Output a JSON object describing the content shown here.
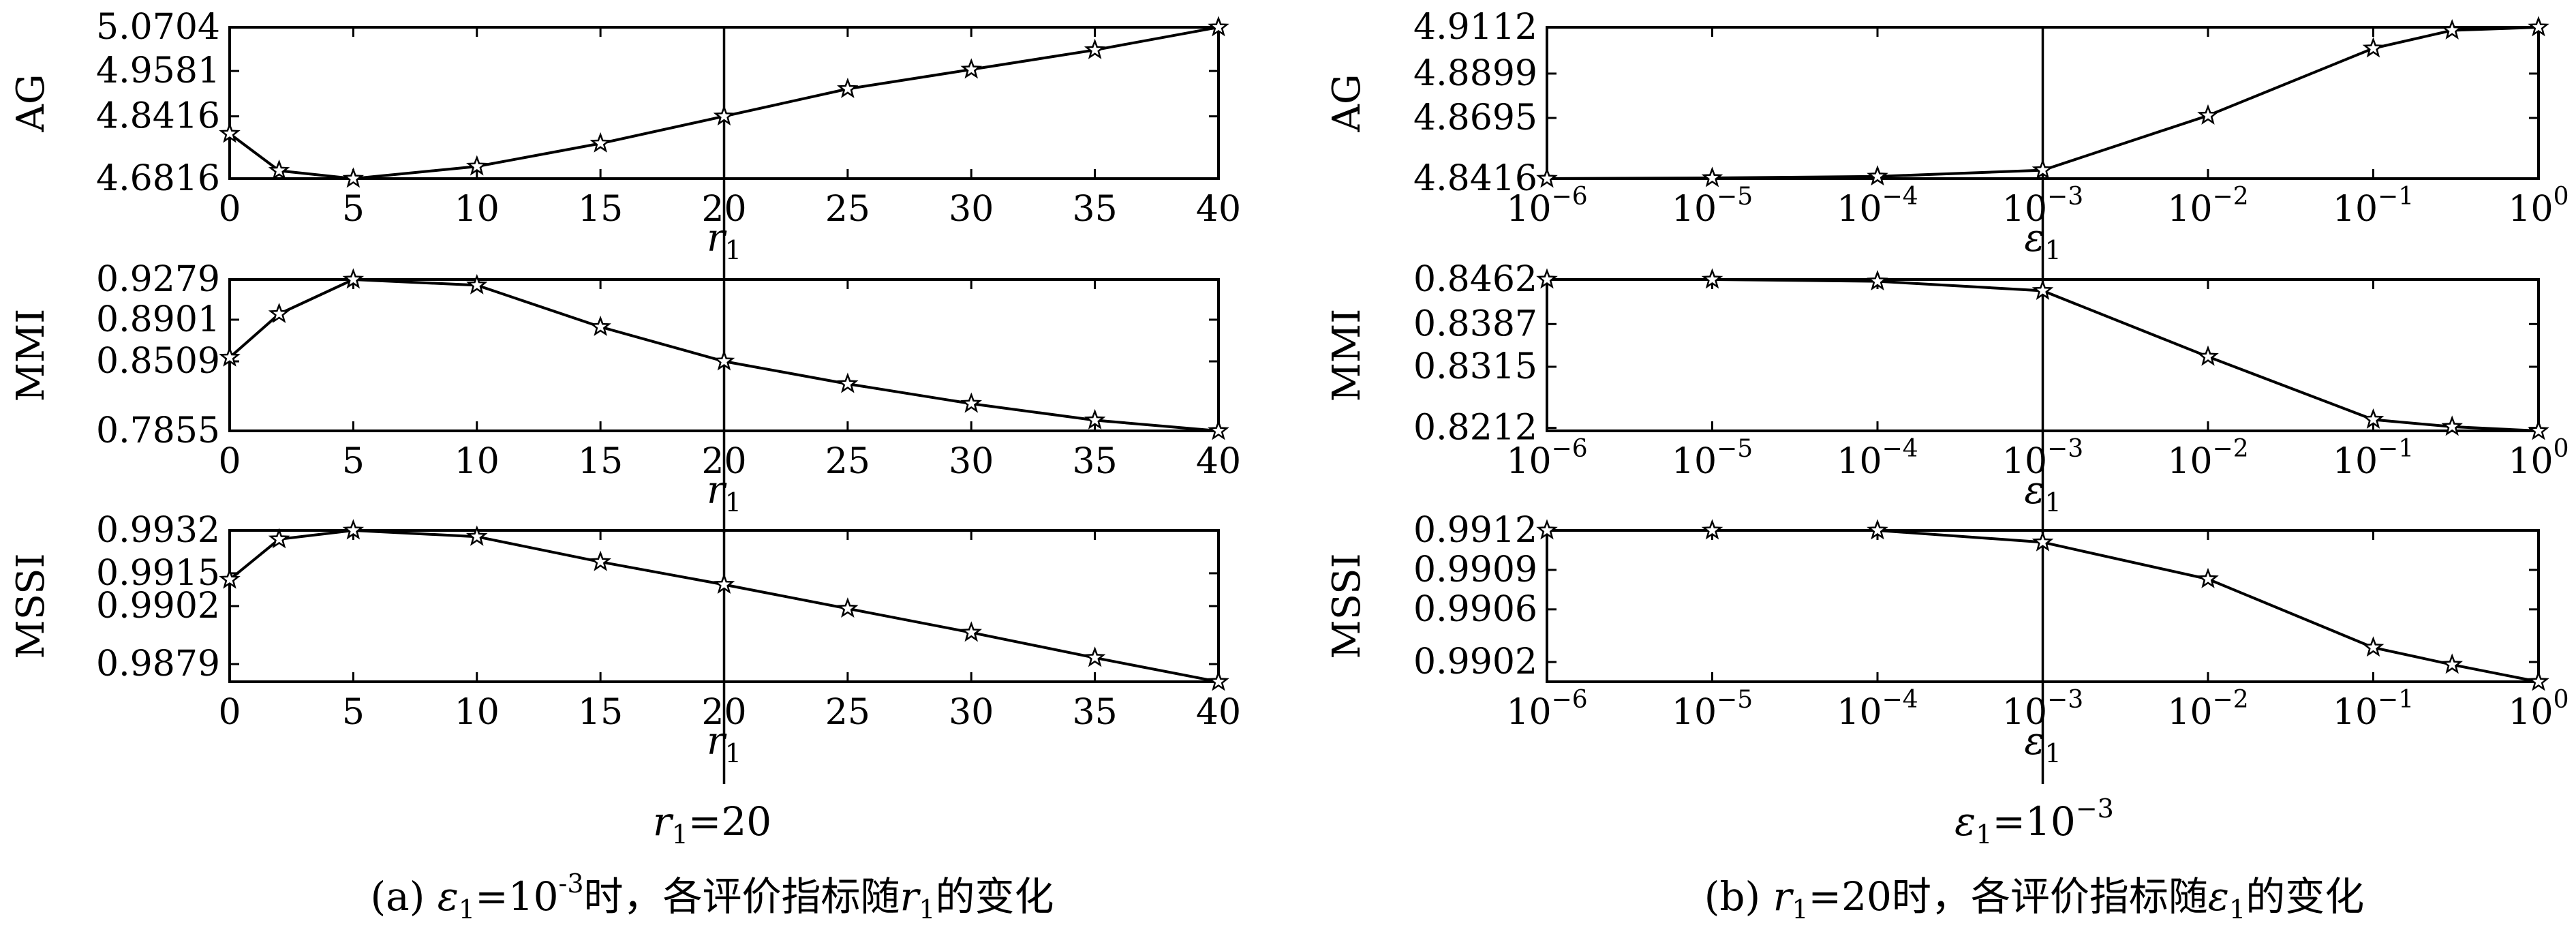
{
  "chart_data": [
    {
      "panel": "a",
      "type": "line",
      "ylabel": "AG",
      "xlabel": "r₁",
      "x": [
        0,
        2,
        5,
        10,
        15,
        20,
        25,
        30,
        35,
        40
      ],
      "values": [
        4.797,
        4.702,
        4.6816,
        4.713,
        4.772,
        4.8416,
        4.912,
        4.962,
        5.012,
        5.0704
      ],
      "xticks": [
        "0",
        "5",
        "10",
        "15",
        "20",
        "25",
        "30",
        "35",
        "40"
      ],
      "yticks": [
        "4.6816",
        "4.8416",
        "4.9581",
        "5.0704"
      ],
      "xlim": [
        0,
        40
      ],
      "ylim": [
        4.6816,
        5.0704
      ],
      "vline": 20
    },
    {
      "panel": "a",
      "type": "line",
      "ylabel": "MMI",
      "xlabel": "r₁",
      "x": [
        0,
        2,
        5,
        10,
        15,
        20,
        25,
        30,
        35,
        40
      ],
      "values": [
        0.8545,
        0.8955,
        0.9279,
        0.9225,
        0.8833,
        0.8509,
        0.8297,
        0.8111,
        0.7955,
        0.7855
      ],
      "xticks": [
        "0",
        "5",
        "10",
        "15",
        "20",
        "25",
        "30",
        "35",
        "40"
      ],
      "yticks": [
        "0.7855",
        "0.8509",
        "0.8901",
        "0.9279"
      ],
      "xlim": [
        0,
        40
      ],
      "ylim": [
        0.7855,
        0.9279
      ],
      "vline": 20
    },
    {
      "panel": "a",
      "type": "line",
      "ylabel": "MSSI",
      "xlabel": "r₁",
      "x": [
        0,
        2,
        5,
        10,
        15,
        20,
        25,
        30,
        35,
        40
      ],
      "values": [
        0.99125,
        0.99285,
        0.9932,
        0.99295,
        0.99195,
        0.99105,
        0.9901,
        0.98915,
        0.98815,
        0.9872
      ],
      "xticks": [
        "0",
        "5",
        "10",
        "15",
        "20",
        "25",
        "30",
        "35",
        "40"
      ],
      "yticks": [
        "0.9879",
        "0.9902",
        "0.9915",
        "0.9932"
      ],
      "xlim": [
        0,
        40
      ],
      "ylim": [
        0.9872,
        0.9932
      ],
      "vline": 20
    },
    {
      "panel": "b",
      "type": "line",
      "ylabel": "AG",
      "xlabel": "ε₁",
      "xscale": "log",
      "x": [
        1e-06,
        1e-05,
        0.0001,
        0.001,
        0.01,
        0.1,
        0.3,
        1
      ],
      "values": [
        4.8416,
        4.8419,
        4.8426,
        4.8455,
        4.8706,
        4.9015,
        4.9098,
        4.9112
      ],
      "xticks": [
        "10",
        "10",
        "10",
        "10",
        "10",
        "10",
        "10"
      ],
      "xtick_exponents": [
        "−6",
        "−5",
        "−4",
        "−3",
        "−2",
        "−1",
        "0"
      ],
      "yticks": [
        "4.8416",
        "4.8695",
        "4.8899",
        "4.9112"
      ],
      "xlim": [
        1e-06,
        1
      ],
      "ylim": [
        4.8416,
        4.9112
      ],
      "vline": 0.001
    },
    {
      "panel": "b",
      "type": "line",
      "ylabel": "MMI",
      "xlabel": "ε₁",
      "xscale": "log",
      "x": [
        1e-06,
        1e-05,
        0.0001,
        0.001,
        0.01,
        0.1,
        0.3,
        1
      ],
      "values": [
        0.8462,
        0.8462,
        0.8459,
        0.8443,
        0.8332,
        0.8226,
        0.8214,
        0.8207
      ],
      "xticks": [
        "10",
        "10",
        "10",
        "10",
        "10",
        "10",
        "10"
      ],
      "xtick_exponents": [
        "−6",
        "−5",
        "−4",
        "−3",
        "−2",
        "−1",
        "0"
      ],
      "yticks": [
        "0.8212",
        "0.8315",
        "0.8387",
        "0.8462"
      ],
      "xlim": [
        1e-06,
        1
      ],
      "ylim": [
        0.8207,
        0.8462
      ],
      "vline": 0.001
    },
    {
      "panel": "b",
      "type": "line",
      "ylabel": "MSSI",
      "xlabel": "ε₁",
      "xscale": "log",
      "x": [
        1e-06,
        1e-05,
        0.0001,
        0.001,
        0.01,
        0.1,
        0.3,
        1
      ],
      "values": [
        0.9912,
        0.9912,
        0.9912,
        0.99111,
        0.99083,
        0.99031,
        0.99018,
        0.99005
      ],
      "xticks": [
        "10",
        "10",
        "10",
        "10",
        "10",
        "10",
        "10"
      ],
      "xtick_exponents": [
        "−6",
        "−5",
        "−4",
        "−3",
        "−2",
        "−1",
        "0"
      ],
      "yticks": [
        "0.9902",
        "0.9906",
        "0.9909",
        "0.9912"
      ],
      "xlim": [
        1e-06,
        1
      ],
      "ylim": [
        0.99005,
        0.9912
      ],
      "vline": 0.001
    }
  ],
  "annotations": {
    "a_param_prefix": "r",
    "a_param_sub": "1",
    "a_param_value": "=20",
    "b_param_prefix": "ε",
    "b_param_sub": "1",
    "b_param_value": "=10",
    "b_param_exp": "−3"
  },
  "captions": {
    "a_text1": "(a) ",
    "a_eps": "ε",
    "a_eps_sub": "1",
    "a_eq": "=10",
    "a_exp": "-3",
    "a_text2": "时，各评价指标随",
    "a_r": "r",
    "a_r_sub": "1",
    "a_text3": "的变化",
    "b_text1": "(b) ",
    "b_r": "r",
    "b_r_sub": "1",
    "b_eq": "=20时，各评价指标随",
    "b_eps": "ε",
    "b_eps_sub": "1",
    "b_text3": "的变化"
  }
}
